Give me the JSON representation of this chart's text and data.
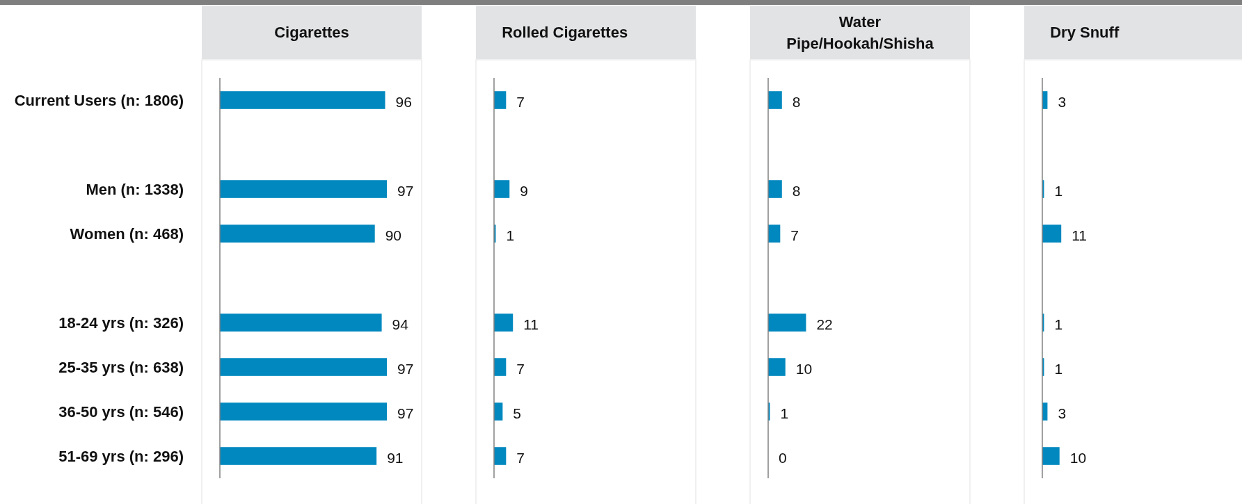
{
  "chart_data": [
    {
      "type": "bar",
      "orientation": "horizontal",
      "title": "Cigarettes",
      "categories": [
        "Current Users (n: 1806)",
        null,
        "Men (n: 1338)",
        "Women (n: 468)",
        null,
        "18-24 yrs (n: 326)",
        "25-35 yrs (n: 638)",
        "36-50 yrs (n: 546)",
        "51-69 yrs (n: 296)"
      ],
      "values": [
        96,
        null,
        97,
        90,
        null,
        94,
        97,
        97,
        91
      ],
      "color": "#0088bf",
      "data_labels": true,
      "tick_labels": "y"
    },
    {
      "type": "bar",
      "orientation": "horizontal",
      "title": "Rolled Cigarettes",
      "categories": [
        null,
        null,
        null,
        null,
        null,
        null,
        null,
        null,
        null
      ],
      "values": [
        7,
        null,
        9,
        1,
        null,
        11,
        7,
        5,
        7
      ],
      "color": "#0088bf",
      "data_labels": true
    },
    {
      "type": "bar",
      "orientation": "horizontal",
      "title": "Water Pipe/Hookah/Shisha",
      "categories": [
        null,
        null,
        null,
        null,
        null,
        null,
        null,
        null,
        null
      ],
      "values": [
        8,
        null,
        8,
        7,
        null,
        22,
        10,
        1,
        0
      ],
      "color": "#0088bf",
      "data_labels": true
    },
    {
      "type": "bar",
      "orientation": "horizontal",
      "title": "Dry Snuff",
      "categories": [
        null,
        null,
        null,
        null,
        null,
        null,
        null,
        null,
        null
      ],
      "values": [
        3,
        null,
        1,
        11,
        null,
        1,
        1,
        3,
        10
      ],
      "color": "#0088bf",
      "data_labels": true
    }
  ]
}
